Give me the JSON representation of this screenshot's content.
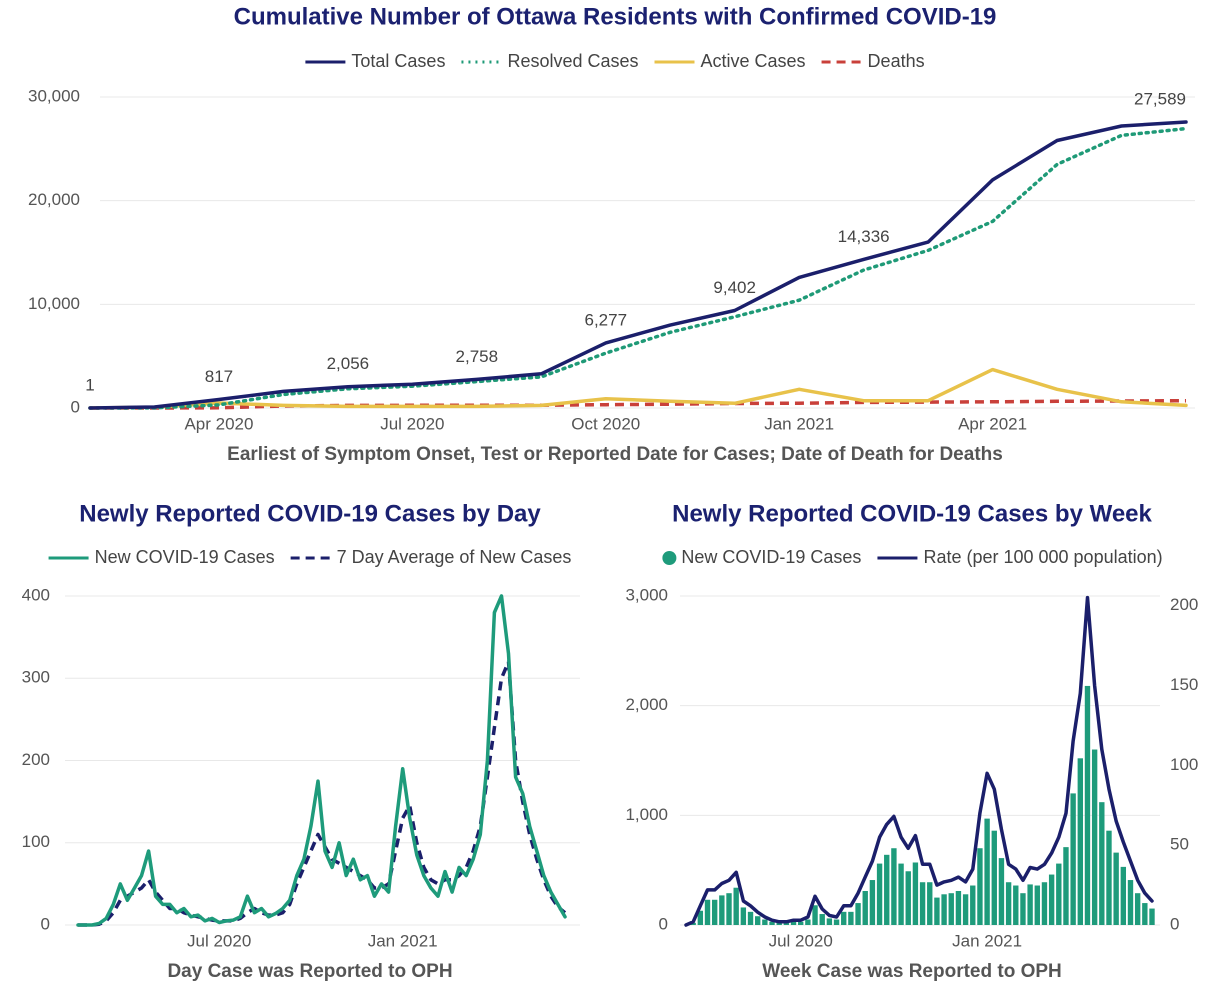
{
  "chart_data": [
    {
      "type": "line",
      "title": "Cumulative Number of Ottawa Residents with Confirmed COVID-19",
      "x_label": "Earliest of Symptom Onset, Test or Reported Date for Cases; Date of Death for Deaths",
      "categories": [
        null,
        null,
        "Apr 2020",
        null,
        null,
        "Jul 2020",
        null,
        null,
        "Oct 2020",
        null,
        null,
        "Jan 2021",
        null,
        null,
        "Apr 2021",
        null,
        null,
        null
      ],
      "ylim": [
        0,
        30000
      ],
      "yticks": [
        0,
        {
          "value": 10000,
          "label": "10,000"
        },
        {
          "value": 20000,
          "label": "20,000"
        },
        {
          "value": 30000,
          "label": "30,000"
        }
      ],
      "grid": true,
      "series": [
        {
          "name": "Total Cases",
          "color": "#1b1f6b",
          "style": "solid",
          "values": [
            1,
            100,
            817,
            1600,
            2056,
            2300,
            2758,
            3300,
            6277,
            8000,
            9402,
            12600,
            14336,
            16000,
            22000,
            25800,
            27200,
            27589
          ],
          "value_labels": [
            "1",
            null,
            "817",
            null,
            "2,056",
            null,
            "2,758",
            null,
            "6,277",
            null,
            "9,402",
            null,
            "14,336",
            null,
            null,
            null,
            null,
            "27,589"
          ]
        },
        {
          "name": "Resolved Cases",
          "color": "#1f9a77",
          "style": "dotted",
          "values": [
            0,
            10,
            300,
            1300,
            1850,
            2100,
            2550,
            3000,
            5300,
            7300,
            8800,
            10400,
            13300,
            15200,
            18000,
            23500,
            26300,
            26950
          ]
        },
        {
          "name": "Active Cases",
          "color": "#e8c24a",
          "style": "solid",
          "values": [
            1,
            90,
            480,
            250,
            150,
            150,
            150,
            250,
            900,
            650,
            450,
            1800,
            700,
            700,
            3700,
            1800,
            600,
            250
          ]
        },
        {
          "name": "Deaths",
          "color": "#c9403a",
          "style": "dashed",
          "values": [
            0,
            1,
            20,
            190,
            250,
            260,
            265,
            270,
            320,
            370,
            430,
            460,
            540,
            570,
            600,
            650,
            680,
            700
          ]
        }
      ]
    },
    {
      "type": "line",
      "title": "Newly Reported COVID-19 Cases by Day",
      "x_label": "Day Case was Reported to OPH",
      "categories": [
        null,
        null,
        null,
        null,
        null,
        null,
        null,
        null,
        null,
        null,
        null,
        null,
        null,
        null,
        null,
        null,
        null,
        null,
        null,
        null,
        "Jul 2020",
        null,
        null,
        null,
        null,
        null,
        null,
        null,
        null,
        null,
        null,
        null,
        null,
        null,
        null,
        null,
        null,
        null,
        null,
        null,
        null,
        null,
        null,
        null,
        null,
        null,
        "Jan 2021",
        null,
        null,
        null,
        null,
        null,
        null,
        null,
        null,
        null,
        null,
        null,
        null,
        null,
        null,
        null,
        null,
        null,
        null,
        null,
        null,
        null,
        null,
        null
      ],
      "ylim": [
        0,
        400
      ],
      "yticks": [
        0,
        100,
        200,
        300,
        400
      ],
      "grid": true,
      "series": [
        {
          "name": "New COVID-19 Cases",
          "color": "#1e9b7b",
          "style": "solid",
          "values": [
            0,
            0,
            0,
            2,
            8,
            25,
            50,
            30,
            45,
            60,
            90,
            35,
            25,
            25,
            15,
            20,
            10,
            12,
            5,
            8,
            3,
            5,
            6,
            10,
            35,
            15,
            20,
            10,
            14,
            20,
            30,
            60,
            80,
            120,
            175,
            90,
            70,
            100,
            60,
            80,
            55,
            60,
            35,
            50,
            40,
            120,
            190,
            130,
            85,
            60,
            45,
            35,
            65,
            40,
            70,
            60,
            80,
            110,
            200,
            380,
            400,
            330,
            180,
            160,
            120,
            90,
            60,
            40,
            25,
            10
          ]
        },
        {
          "name": "7 Day Average of New Cases",
          "color": "#1b1f6b",
          "style": "dashed",
          "values": [
            0,
            0,
            0,
            1,
            5,
            15,
            30,
            35,
            40,
            45,
            55,
            40,
            30,
            20,
            20,
            15,
            12,
            10,
            8,
            6,
            5,
            5,
            5,
            8,
            15,
            20,
            15,
            12,
            12,
            15,
            25,
            50,
            70,
            90,
            110,
            95,
            80,
            75,
            70,
            65,
            60,
            55,
            45,
            45,
            50,
            90,
            130,
            145,
            100,
            70,
            55,
            50,
            55,
            55,
            60,
            70,
            90,
            120,
            180,
            240,
            300,
            320,
            200,
            150,
            110,
            80,
            55,
            35,
            22,
            15
          ]
        }
      ]
    },
    {
      "type": "bar_line",
      "title": "Newly Reported COVID-19 Cases by Week",
      "x_label": "Week Case was Reported to OPH",
      "categories": [
        null,
        null,
        null,
        null,
        null,
        null,
        null,
        null,
        null,
        null,
        null,
        null,
        null,
        null,
        null,
        null,
        "Jul 2020",
        null,
        null,
        null,
        null,
        null,
        null,
        null,
        null,
        null,
        null,
        null,
        null,
        null,
        null,
        null,
        null,
        null,
        null,
        null,
        null,
        null,
        null,
        null,
        null,
        null,
        "Jan 2021",
        null,
        null,
        null,
        null,
        null,
        null,
        null,
        null,
        null,
        null,
        null,
        null,
        null,
        null,
        null,
        null,
        null,
        null,
        null,
        null,
        null,
        null,
        null
      ],
      "ylim": [
        0,
        3000
      ],
      "yticks": [
        0,
        {
          "value": 1000,
          "label": "1,000"
        },
        {
          "value": 2000,
          "label": "2,000"
        },
        {
          "value": 3000,
          "label": "3,000"
        }
      ],
      "y2lim": [
        0,
        206
      ],
      "y2ticks": [
        0,
        50,
        100,
        150,
        200
      ],
      "grid": true,
      "series": [
        {
          "name": "New COVID-19 Cases",
          "color": "#1e9b7b",
          "type": "bar",
          "values": [
            0,
            20,
            130,
            230,
            230,
            270,
            290,
            340,
            160,
            120,
            80,
            50,
            30,
            20,
            20,
            30,
            30,
            50,
            180,
            100,
            60,
            50,
            120,
            120,
            200,
            310,
            410,
            560,
            640,
            700,
            560,
            490,
            570,
            390,
            390,
            250,
            280,
            290,
            310,
            280,
            360,
            700,
            970,
            860,
            610,
            390,
            360,
            290,
            370,
            360,
            390,
            460,
            560,
            710,
            1200,
            1520,
            2180,
            1600,
            1120,
            860,
            660,
            530,
            410,
            290,
            200,
            150
          ]
        },
        {
          "name": "Rate (per 100 000 population)",
          "color": "#1b1f6b",
          "style": "solid",
          "axis": "y2",
          "values": [
            0,
            2,
            12,
            22,
            22,
            26,
            28,
            33,
            15,
            12,
            8,
            5,
            3,
            2,
            2,
            3,
            3,
            5,
            18,
            10,
            6,
            5,
            12,
            12,
            20,
            30,
            40,
            55,
            63,
            68,
            55,
            48,
            56,
            38,
            38,
            25,
            27,
            28,
            30,
            27,
            35,
            70,
            95,
            85,
            60,
            38,
            35,
            28,
            36,
            35,
            38,
            45,
            55,
            70,
            115,
            145,
            205,
            150,
            110,
            85,
            65,
            52,
            40,
            28,
            20,
            15
          ]
        }
      ]
    }
  ]
}
